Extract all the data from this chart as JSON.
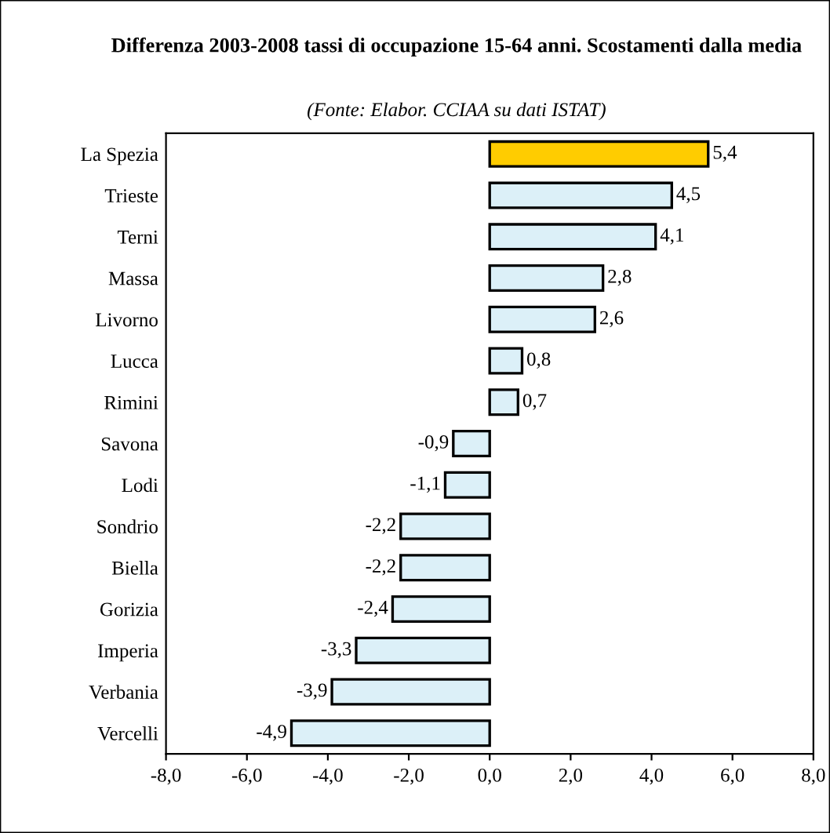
{
  "chart_data": {
    "type": "bar",
    "orientation": "horizontal",
    "title": "Differenza 2003-2008 tassi di occupazione 15-64 anni. Scostamenti dalla media",
    "subtitle": "(Fonte: Elabor. CCIAA su dati ISTAT)",
    "categories": [
      "La Spezia",
      "Trieste",
      "Terni",
      "Massa",
      "Livorno",
      "Lucca",
      "Rimini",
      "Savona",
      "Lodi",
      "Sondrio",
      "Biella",
      "Gorizia",
      "Imperia",
      "Verbania",
      "Vercelli"
    ],
    "values": [
      5.4,
      4.5,
      4.1,
      2.8,
      2.6,
      0.8,
      0.7,
      -0.9,
      -1.1,
      -2.2,
      -2.2,
      -2.4,
      -3.3,
      -3.9,
      -4.9
    ],
    "colors": [
      "#ffcc00",
      "#dcf0f8",
      "#dcf0f8",
      "#dcf0f8",
      "#dcf0f8",
      "#dcf0f8",
      "#dcf0f8",
      "#dcf0f8",
      "#dcf0f8",
      "#dcf0f8",
      "#dcf0f8",
      "#dcf0f8",
      "#dcf0f8",
      "#dcf0f8",
      "#dcf0f8"
    ],
    "value_labels": [
      "5,4",
      "4,5",
      "4,1",
      "2,8",
      "2,6",
      "0,8",
      "0,7",
      "-0,9",
      "-1,1",
      "-2,2",
      "-2,2",
      "-2,4",
      "-3,3",
      "-3,9",
      "-4,9"
    ],
    "xlim": [
      -8,
      8
    ],
    "xticks": [
      {
        "value": -8,
        "label": "-8,0"
      },
      {
        "value": -6,
        "label": "-6,0"
      },
      {
        "value": -4,
        "label": "-4,0"
      },
      {
        "value": -2,
        "label": "-2,0"
      },
      {
        "value": 0,
        "label": "0,0"
      },
      {
        "value": 2,
        "label": "2,0"
      },
      {
        "value": 4,
        "label": "4,0"
      },
      {
        "value": 6,
        "label": "6,0"
      },
      {
        "value": 8,
        "label": "8,0"
      }
    ],
    "grid": false,
    "legend": false
  }
}
